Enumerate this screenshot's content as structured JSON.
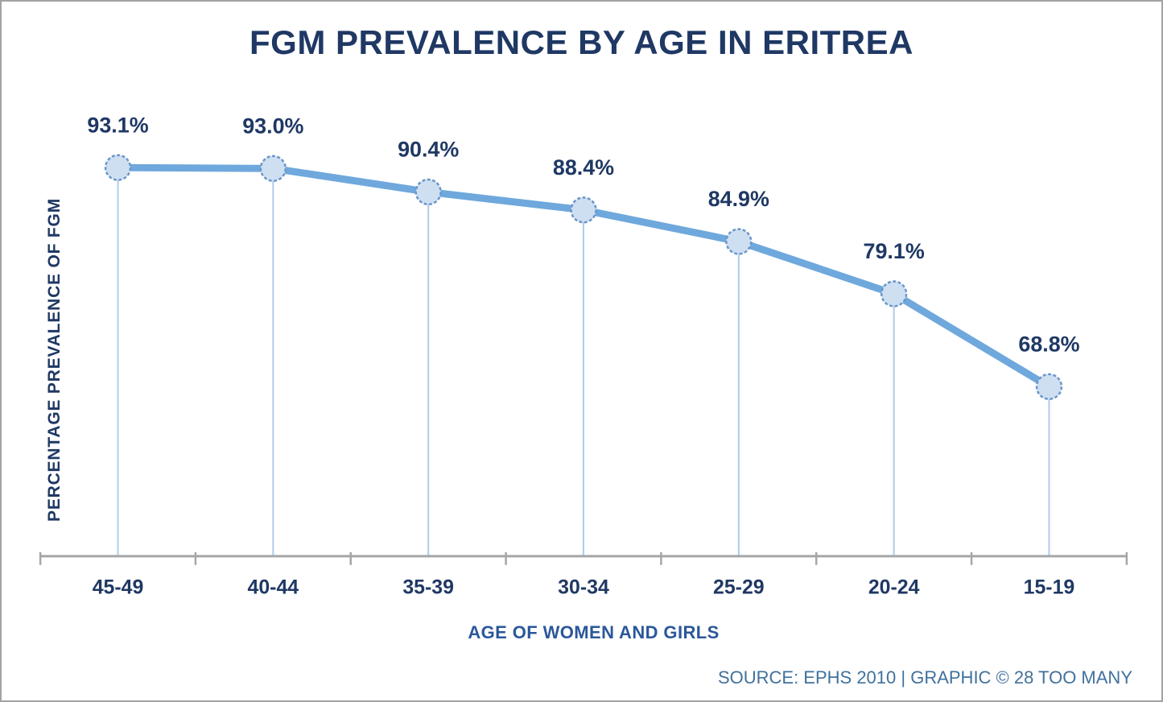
{
  "page": {
    "title": "FGM PREVALENCE BY AGE IN ERITREA",
    "source_credit": "SOURCE: EPHS 2010 | GRAPHIC © 28 TOO MANY"
  },
  "chart_data": {
    "type": "line",
    "title": "FGM PREVALENCE BY AGE IN ERITREA",
    "xlabel": "AGE OF WOMEN AND GIRLS",
    "ylabel": "PERCENTAGE PREVALENCE OF FGM",
    "categories": [
      "45-49",
      "40-44",
      "35-39",
      "30-34",
      "25-29",
      "20-24",
      "15-19"
    ],
    "values": [
      93.1,
      93.0,
      90.4,
      88.4,
      84.9,
      79.1,
      68.8
    ],
    "point_labels": [
      "93.1%",
      "93.0%",
      "90.4%",
      "88.4%",
      "84.9%",
      "79.1%",
      "68.8%"
    ],
    "ylim": [
      50,
      100
    ],
    "grid": false,
    "legend": false,
    "annotations": "value labels above each marker; thin drop line from each marker to x-axis",
    "colors": {
      "line": "#6fa8dc",
      "marker_fill": "#cfdff2",
      "marker_stroke": "#6b97ca",
      "drop_line": "#b0cbe9",
      "axis": "#a6a6a6",
      "text_navy": "#1f3864",
      "axis_title_blue": "#2b579a",
      "source_blue": "#41719c"
    },
    "source": "SOURCE: EPHS 2010 | GRAPHIC © 28 TOO MANY"
  }
}
